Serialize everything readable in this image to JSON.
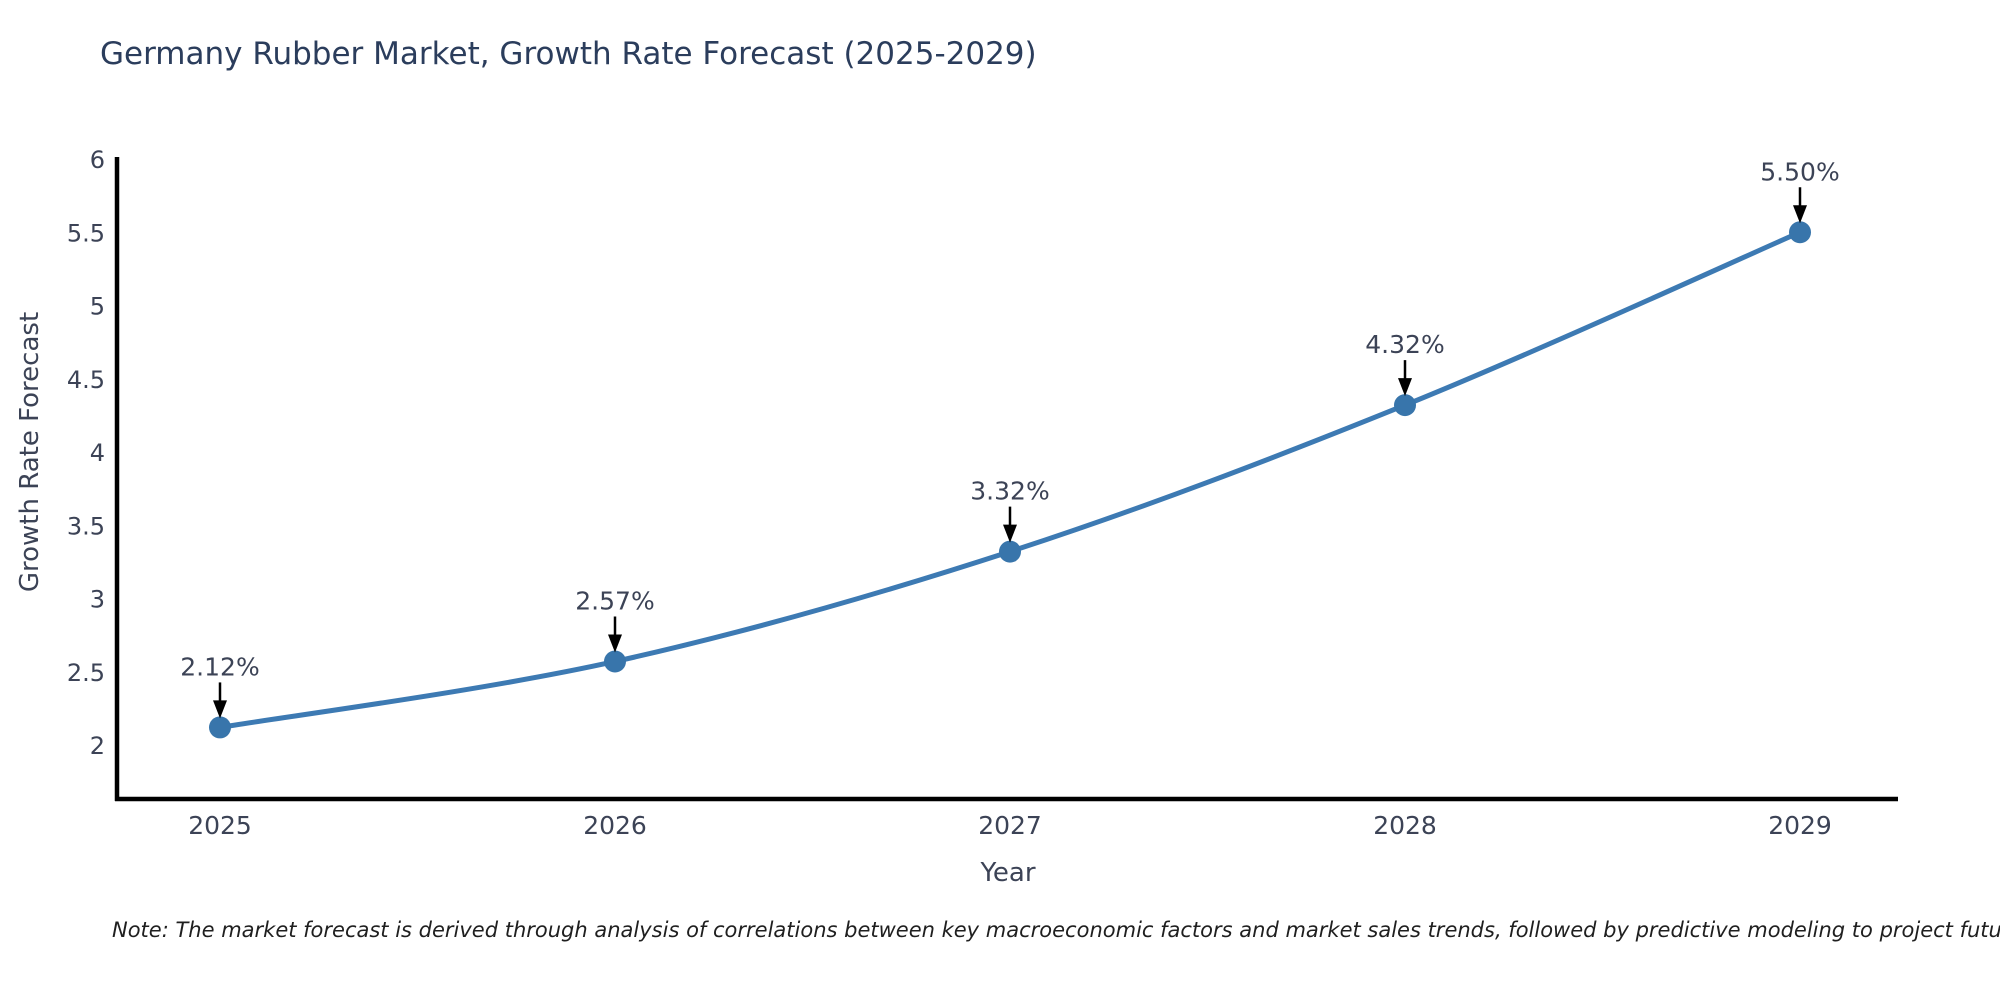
{
  "title": "Germany Rubber Market, Growth Rate Forecast (2025-2029)",
  "note": "Note: The market forecast is derived through analysis of correlations between key macroeconomic factors and market sales trends, followed by predictive modeling to project future sales",
  "chart_data": {
    "type": "line",
    "x": [
      2025,
      2026,
      2027,
      2028,
      2029
    ],
    "y": [
      2.12,
      2.57,
      3.32,
      4.32,
      5.5
    ],
    "point_labels": [
      "2.12%",
      "2.57%",
      "3.32%",
      "4.32%",
      "5.50%"
    ],
    "x_tick_labels": [
      "2025",
      "2026",
      "2027",
      "2028",
      "2029"
    ],
    "y_tick_values": [
      6,
      5.5,
      5,
      4.5,
      4,
      3.5,
      3,
      2.5,
      2
    ],
    "y_tick_labels": [
      "6",
      "5.5",
      "5",
      "4.5",
      "4",
      "3.5",
      "3",
      "2.5",
      "2"
    ],
    "xlabel": "Year",
    "ylabel": "Growth Rate Forecast",
    "ylim": [
      1.63,
      6.0
    ],
    "grid": false,
    "legend": "none",
    "line_shape": "spline",
    "colors": {
      "line": "#3d7ab3",
      "marker": "#3875ab",
      "axis": "#000000",
      "tick_label": "#3c4356",
      "annotation_text": "#3c4356",
      "annotation_arrow": "#000000",
      "title": "#2b3d5c"
    }
  }
}
